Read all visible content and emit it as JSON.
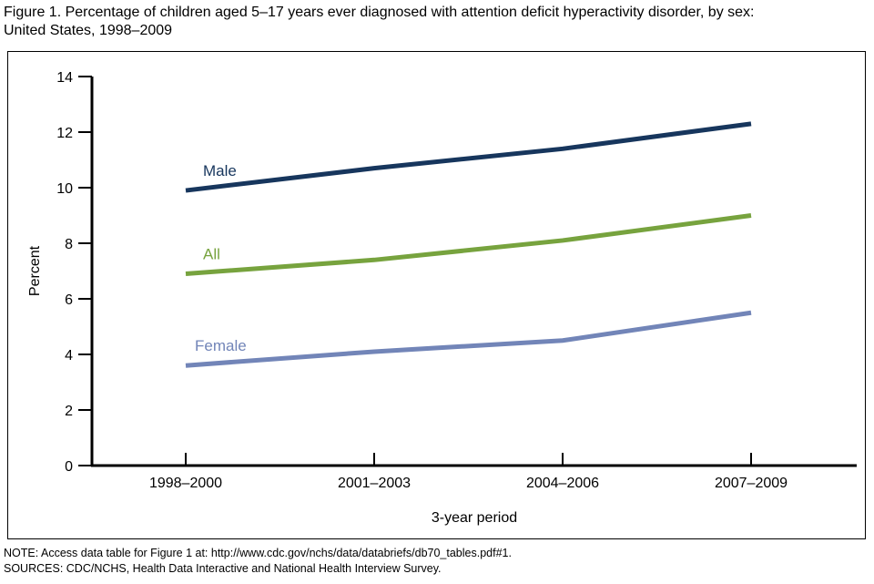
{
  "title": {
    "line1": "Figure 1. Percentage of children aged 5–17 years ever diagnosed with attention deficit hyperactivity disorder, by sex:",
    "line2": "United States, 1998–2009"
  },
  "chart_data": {
    "type": "line",
    "categories": [
      "1998–2000",
      "2001–2003",
      "2004–2006",
      "2007–2009"
    ],
    "series": [
      {
        "name": "Male",
        "values": [
          9.9,
          10.7,
          11.4,
          12.3
        ],
        "color": "#17365d"
      },
      {
        "name": "All",
        "values": [
          6.9,
          7.4,
          8.1,
          9.0
        ],
        "color": "#77a33e"
      },
      {
        "name": "Female",
        "values": [
          3.6,
          4.1,
          4.5,
          5.5
        ],
        "color": "#7285b8"
      }
    ],
    "xlabel": "3-year period",
    "ylabel": "Percent",
    "ylim": [
      0,
      14
    ],
    "ytick_step": 2,
    "yticks": [
      0,
      2,
      4,
      6,
      8,
      10,
      12,
      14
    ],
    "grid": false,
    "legend_position": "inline-labels",
    "axis_color": "#000000"
  },
  "notes": {
    "note": "NOTE: Access data table for Figure 1 at: http://www.cdc.gov/nchs/data/databriefs/db70_tables.pdf#1.",
    "sources": "SOURCES: CDC/NCHS, Health Data Interactive and National Health Interview Survey."
  }
}
